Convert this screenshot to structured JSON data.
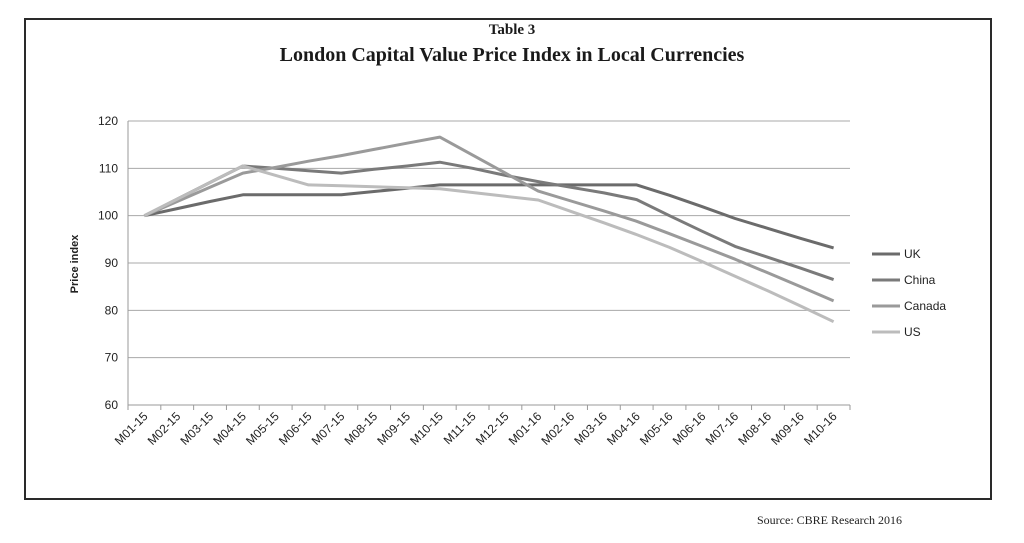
{
  "table_label": "Table 3",
  "source_note": "Source: CBRE  Research 2016",
  "chart_data": {
    "type": "line",
    "title": "London Capital Value Price Index in Local Currencies",
    "xlabel": "",
    "ylabel": "Price index",
    "ylim": [
      60,
      120
    ],
    "yticks": [
      60,
      70,
      80,
      90,
      100,
      110,
      120
    ],
    "grid": true,
    "legend_position": "right",
    "x": [
      "M01-15",
      "M02-15",
      "M03-15",
      "M04-15",
      "M05-15",
      "M06-15",
      "M07-15",
      "M08-15",
      "M09-15",
      "M10-15",
      "M11-15",
      "M12-15",
      "M01-16",
      "M02-16",
      "M03-16",
      "M04-16",
      "M05-16",
      "M06-16",
      "M07-16",
      "M08-16",
      "M09-16",
      "M10-16"
    ],
    "series": [
      {
        "name": "UK",
        "color": "#6b6b6b",
        "values": [
          100,
          101.5,
          103,
          104.4,
          104.4,
          104.4,
          104.4,
          105.1,
          105.8,
          106.5,
          106.5,
          106.5,
          106.5,
          106.5,
          106.5,
          106.5,
          104.3,
          101.9,
          99.4,
          97.3,
          95.2,
          93.2
        ]
      },
      {
        "name": "China",
        "color": "#7a7a7a",
        "values": [
          100,
          103.5,
          107,
          110.5,
          110,
          109.5,
          109,
          109.8,
          110.5,
          111.3,
          110,
          108.5,
          107.2,
          106,
          104.8,
          103.4,
          100,
          96.7,
          93.5,
          91.2,
          88.9,
          86.5
        ]
      },
      {
        "name": "Canada",
        "color": "#9a9a9a",
        "values": [
          100,
          103,
          106,
          109,
          110.2,
          111.5,
          112.7,
          114,
          115.3,
          116.6,
          112.8,
          109,
          105.2,
          103.1,
          101,
          98.8,
          96.2,
          93.5,
          90.8,
          87.9,
          85,
          82
        ]
      },
      {
        "name": "US",
        "color": "#bcbcbc",
        "values": [
          100,
          103.5,
          107,
          110.5,
          108.5,
          106.5,
          106.3,
          106.1,
          105.9,
          105.7,
          104.9,
          104.1,
          103.3,
          100.9,
          98.5,
          96,
          93.3,
          90.3,
          87.2,
          84.1,
          80.9,
          77.6
        ]
      }
    ]
  }
}
